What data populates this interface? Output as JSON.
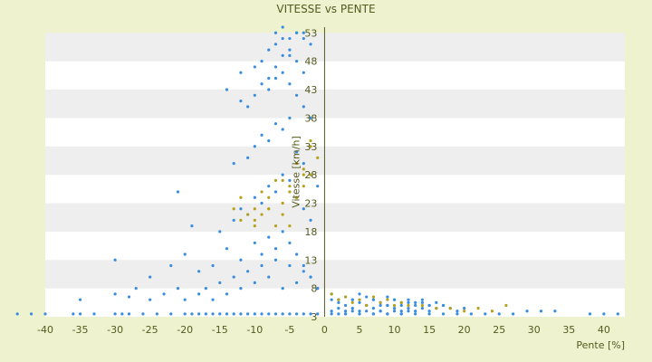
{
  "chart_data": {
    "type": "scatter",
    "title": "VITESSE vs PENTE",
    "xlabel": "Pente [%]",
    "ylabel": "Vitesse [km/h]",
    "xlim": [
      -40,
      43
    ],
    "ylim": [
      3,
      54
    ],
    "x_ticks": [
      "-40",
      "-35",
      "-30",
      "-25",
      "-20",
      "-15",
      "-10",
      "-5",
      "0",
      "5",
      "10",
      "15",
      "20",
      "25",
      "30",
      "35",
      "40"
    ],
    "y_ticks": [
      "3",
      "8",
      "13",
      "18",
      "23",
      "28",
      "33",
      "38",
      "43",
      "48",
      "53"
    ],
    "grid": true,
    "legend": "none",
    "colors": {
      "background": "#eef2cf",
      "plot_band_light": "#ffffff",
      "plot_band_dark": "#eeeeee",
      "series_a": "#3a8dde",
      "series_b": "#b5a21a",
      "axis": "#555a1f"
    },
    "series": [
      {
        "color": "#3a8dde",
        "x": [
          -44,
          -42,
          -40,
          -36,
          -35,
          -33,
          -30,
          -29,
          -28,
          -26,
          -24,
          -22,
          -20,
          -19,
          -18,
          -17,
          -16,
          -15,
          -14,
          -13,
          -12,
          -11,
          -10,
          -9,
          -8,
          -7,
          -6,
          -5,
          -4,
          -3,
          -2,
          -1,
          -35,
          -30,
          -28,
          -27,
          -25,
          -23,
          -21,
          -20,
          -18,
          -17,
          -16,
          -15,
          -14,
          -13,
          -12,
          -11,
          -10,
          -9,
          -8,
          -7,
          -6,
          -5,
          -4,
          -3,
          -2,
          -1,
          -30,
          -25,
          -22,
          -20,
          -18,
          -16,
          -14,
          -12,
          -10,
          -9,
          -8,
          -7,
          -6,
          -5,
          -4,
          -3,
          -2,
          -1,
          -19,
          -15,
          -13,
          -12,
          -11,
          -10,
          -9,
          -8,
          -7,
          -6,
          -5,
          -4,
          -3,
          -2,
          -21,
          -13,
          -11,
          -10,
          -9,
          -8,
          -7,
          -6,
          -5,
          -4,
          -3,
          -2,
          -1,
          -14,
          -12,
          -11,
          -10,
          -9,
          -8,
          -7,
          -6,
          -5,
          -4,
          -3,
          -2,
          -12,
          -10,
          -9,
          -8,
          -7,
          -6,
          -5,
          -4,
          -3,
          -8,
          -7,
          -6,
          -5,
          -4,
          -3,
          -2,
          -7,
          -6,
          -5,
          -4,
          -3,
          1,
          2,
          3,
          4,
          5,
          6,
          7,
          8,
          9,
          10,
          11,
          12,
          13,
          14,
          15,
          16,
          17,
          18,
          19,
          20,
          1,
          2,
          3,
          4,
          5,
          6,
          7,
          8,
          9,
          10,
          11,
          12,
          13,
          14,
          15,
          16,
          17,
          18,
          1,
          2,
          3,
          4,
          5,
          6,
          7,
          8,
          9,
          10,
          11,
          12,
          13,
          14,
          15,
          2,
          3,
          4,
          5,
          6,
          7,
          8,
          9,
          10,
          11,
          12,
          1,
          3,
          5,
          7,
          9,
          11,
          13,
          15,
          17,
          19,
          21,
          23,
          25,
          27,
          29,
          31,
          33,
          38,
          40,
          42
        ],
        "y": [
          3.5,
          3.5,
          3.5,
          3.5,
          3.5,
          3.5,
          3.5,
          3.5,
          3.5,
          3.5,
          3.5,
          3.5,
          3.5,
          3.5,
          3.5,
          3.5,
          3.5,
          3.5,
          3.5,
          3.5,
          3.5,
          3.5,
          3.5,
          3.5,
          3.5,
          3.5,
          3.5,
          3.5,
          3.5,
          3.5,
          3.5,
          3.5,
          6,
          7,
          6.5,
          8,
          6,
          7,
          8,
          6,
          7,
          8,
          6,
          9,
          7,
          10,
          8,
          11,
          9,
          12,
          10,
          13,
          8,
          12,
          9,
          11,
          10,
          8,
          13,
          10,
          12,
          14,
          11,
          12,
          15,
          13,
          16,
          14,
          17,
          15,
          18,
          16,
          14,
          12,
          10,
          8,
          19,
          18,
          20,
          22,
          21,
          24,
          23,
          26,
          25,
          28,
          27,
          24,
          22,
          20,
          25,
          30,
          31,
          33,
          35,
          34,
          37,
          36,
          38,
          32,
          30,
          28,
          26,
          43,
          41,
          40,
          42,
          44,
          43,
          45,
          46,
          44,
          42,
          40,
          38,
          46,
          47,
          48,
          45,
          47,
          49,
          50,
          48,
          46,
          50,
          51,
          52,
          49,
          53,
          52,
          51,
          53,
          54,
          52,
          53,
          53,
          6,
          5.5,
          5,
          6,
          5.5,
          5,
          6,
          5.5,
          5,
          6,
          5,
          5.5,
          5,
          5.5,
          5,
          4.5,
          5,
          4.5,
          4,
          4.5,
          7,
          6,
          6.5,
          6,
          7,
          6.5,
          6,
          5,
          6.5,
          6,
          5.5,
          6,
          5.5,
          6,
          5,
          5.5,
          5,
          4.5,
          4,
          4.5,
          4,
          4.5,
          4,
          5,
          4.5,
          4,
          5,
          4.5,
          4,
          4.5,
          4,
          4.5,
          4,
          3.5,
          3.5,
          4,
          3.5,
          4,
          3.5,
          4,
          3.5,
          4,
          3.5,
          4,
          3.5,
          3.5,
          3.5,
          3.5,
          3.5,
          3.5,
          3.5,
          3.5,
          3.5,
          3.5,
          3.5,
          3.5,
          3.5,
          3.5,
          4,
          4,
          4,
          3.5,
          3.5,
          3.5
        ]
      },
      {
        "color": "#b5a21a",
        "x": [
          -13,
          -12,
          -11,
          -10,
          -9,
          -8,
          -7,
          -6,
          -5,
          -4,
          -3,
          -2,
          -1,
          -12,
          -10,
          -9,
          -8,
          -7,
          -6,
          -5,
          -4,
          -3,
          -2,
          -10,
          -8,
          -6,
          -5,
          -4,
          -3,
          -2,
          1,
          2,
          3,
          4,
          5,
          6,
          7,
          8,
          9,
          10,
          11,
          12,
          14,
          16,
          18,
          20,
          22,
          24,
          26
        ],
        "y": [
          22,
          24,
          21,
          20,
          25,
          22,
          27,
          23,
          26,
          24,
          29,
          28,
          31,
          20,
          22,
          21,
          24,
          19,
          27,
          25,
          30,
          28,
          33,
          19,
          22,
          21,
          19,
          24,
          26,
          34,
          7,
          6,
          6.5,
          5.5,
          6,
          5,
          6.5,
          5.5,
          6,
          5,
          5.5,
          5,
          5,
          4.5,
          4.5,
          4,
          4.5,
          4,
          5
        ]
      }
    ]
  }
}
